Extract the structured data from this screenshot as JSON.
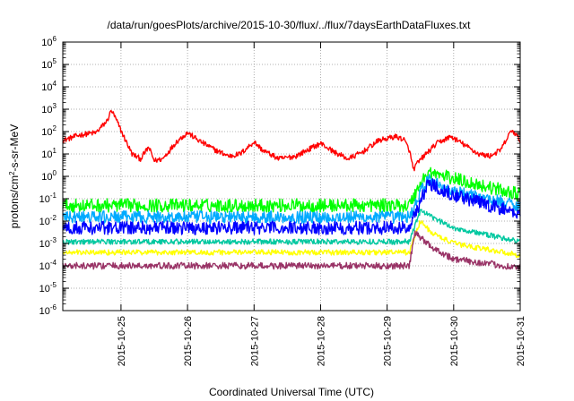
{
  "chart_data": {
    "type": "line",
    "title": "/data/run/goesPlots/archive/2015-10-30/flux/../flux/7daysEarthDataFluxes.txt",
    "xlabel": "Coordinated Universal Time (UTC)",
    "ylabel": {
      "prefix": "protons/cm",
      "sup": "2",
      "suffix": "-s-sr-MeV"
    },
    "yscale": "log",
    "ylim": [
      1e-06,
      1000000.0
    ],
    "xlim": [
      "2015-10-24T03:00",
      "2015-10-31T00:00"
    ],
    "grid": true,
    "legend": "none",
    "y_ticks": [
      {
        "value": 1e-06,
        "base": "10",
        "exp": "-6"
      },
      {
        "value": 1e-05,
        "base": "10",
        "exp": "-5"
      },
      {
        "value": 0.0001,
        "base": "10",
        "exp": "-4"
      },
      {
        "value": 0.001,
        "base": "10",
        "exp": "-3"
      },
      {
        "value": 0.01,
        "base": "10",
        "exp": "-2"
      },
      {
        "value": 0.1,
        "base": "10",
        "exp": "-1"
      },
      {
        "value": 1.0,
        "base": "10",
        "exp": "0"
      },
      {
        "value": 10.0,
        "base": "10",
        "exp": "1"
      },
      {
        "value": 100.0,
        "base": "10",
        "exp": "2"
      },
      {
        "value": 1000.0,
        "base": "10",
        "exp": "3"
      },
      {
        "value": 10000.0,
        "base": "10",
        "exp": "4"
      },
      {
        "value": 100000.0,
        "base": "10",
        "exp": "5"
      },
      {
        "value": 1000000.0,
        "base": "10",
        "exp": "6"
      }
    ],
    "x_ticks": [
      {
        "date": "2015-10-25T00:00",
        "label": "2015-10-25"
      },
      {
        "date": "2015-10-26T00:00",
        "label": "2015-10-26"
      },
      {
        "date": "2015-10-27T00:00",
        "label": "2015-10-27"
      },
      {
        "date": "2015-10-28T00:00",
        "label": "2015-10-28"
      },
      {
        "date": "2015-10-29T00:00",
        "label": "2015-10-29"
      },
      {
        "date": "2015-10-30T00:00",
        "label": "2015-10-30"
      },
      {
        "date": "2015-10-31T00:00",
        "label": "2015-10-31"
      }
    ],
    "series": [
      {
        "color": "#ff0000",
        "noise": 0.12,
        "points": [
          [
            "2015-10-24T03:00",
            40
          ],
          [
            "2015-10-24T09:00",
            70
          ],
          [
            "2015-10-24T15:00",
            90
          ],
          [
            "2015-10-24T19:00",
            300
          ],
          [
            "2015-10-24T20:30",
            900
          ],
          [
            "2015-10-24T22:00",
            400
          ],
          [
            "2015-10-25T01:00",
            60
          ],
          [
            "2015-10-25T04:00",
            10
          ],
          [
            "2015-10-25T07:00",
            6
          ],
          [
            "2015-10-25T10:00",
            20
          ],
          [
            "2015-10-25T12:00",
            5
          ],
          [
            "2015-10-25T15:00",
            6
          ],
          [
            "2015-10-25T20:00",
            35
          ],
          [
            "2015-10-26T00:00",
            90
          ],
          [
            "2015-10-26T04:00",
            40
          ],
          [
            "2015-10-26T10:00",
            15
          ],
          [
            "2015-10-26T15:00",
            8
          ],
          [
            "2015-10-26T19:00",
            10
          ],
          [
            "2015-10-27T00:00",
            35
          ],
          [
            "2015-10-27T03:00",
            15
          ],
          [
            "2015-10-27T09:00",
            6
          ],
          [
            "2015-10-27T15:00",
            8
          ],
          [
            "2015-10-28T00:00",
            30
          ],
          [
            "2015-10-28T05:00",
            12
          ],
          [
            "2015-10-28T10:00",
            6
          ],
          [
            "2015-10-28T15:00",
            12
          ],
          [
            "2015-10-28T21:00",
            40
          ],
          [
            "2015-10-29T03:00",
            60
          ],
          [
            "2015-10-29T06:00",
            45
          ],
          [
            "2015-10-29T08:00",
            15
          ],
          [
            "2015-10-29T09:30",
            2
          ],
          [
            "2015-10-29T11:00",
            4
          ],
          [
            "2015-10-29T14:00",
            10
          ],
          [
            "2015-10-29T18:00",
            30
          ],
          [
            "2015-10-29T23:00",
            60
          ],
          [
            "2015-10-30T04:00",
            25
          ],
          [
            "2015-10-30T09:00",
            10
          ],
          [
            "2015-10-30T13:00",
            8
          ],
          [
            "2015-10-30T17:00",
            15
          ],
          [
            "2015-10-30T21:00",
            120
          ],
          [
            "2015-10-31T00:00",
            40
          ]
        ]
      },
      {
        "color": "#00ff00",
        "noise": 0.3,
        "points": [
          [
            "2015-10-24T03:00",
            0.05
          ],
          [
            "2015-10-29T08:00",
            0.05
          ],
          [
            "2015-10-29T12:00",
            0.5
          ],
          [
            "2015-10-29T15:00",
            1.5
          ],
          [
            "2015-10-30T00:00",
            0.8
          ],
          [
            "2015-10-31T00:00",
            0.15
          ]
        ]
      },
      {
        "color": "#00aaff",
        "noise": 0.28,
        "points": [
          [
            "2015-10-24T03:00",
            0.015
          ],
          [
            "2015-10-29T08:00",
            0.015
          ],
          [
            "2015-10-29T12:00",
            0.2
          ],
          [
            "2015-10-29T15:00",
            0.7
          ],
          [
            "2015-10-30T00:00",
            0.2
          ],
          [
            "2015-10-31T00:00",
            0.05
          ]
        ]
      },
      {
        "color": "#0000ff",
        "noise": 0.3,
        "points": [
          [
            "2015-10-24T03:00",
            0.005
          ],
          [
            "2015-10-29T08:00",
            0.005
          ],
          [
            "2015-10-29T12:00",
            0.08
          ],
          [
            "2015-10-29T15:00",
            0.5
          ],
          [
            "2015-10-30T00:00",
            0.15
          ],
          [
            "2015-10-31T00:00",
            0.02
          ]
        ]
      },
      {
        "color": "#00c8a0",
        "noise": 0.12,
        "points": [
          [
            "2015-10-24T03:00",
            0.0012
          ],
          [
            "2015-10-29T08:00",
            0.0012
          ],
          [
            "2015-10-29T12:00",
            0.03
          ],
          [
            "2015-10-29T16:00",
            0.015
          ],
          [
            "2015-10-30T00:00",
            0.005
          ],
          [
            "2015-10-31T00:00",
            0.0012
          ]
        ]
      },
      {
        "color": "#ffff00",
        "noise": 0.12,
        "points": [
          [
            "2015-10-24T03:00",
            0.0004
          ],
          [
            "2015-10-29T08:00",
            0.0004
          ],
          [
            "2015-10-29T12:00",
            0.01
          ],
          [
            "2015-10-29T16:00",
            0.003
          ],
          [
            "2015-10-30T00:00",
            0.001
          ],
          [
            "2015-10-31T00:00",
            0.0003
          ]
        ]
      },
      {
        "color": "#993366",
        "noise": 0.15,
        "points": [
          [
            "2015-10-24T03:00",
            0.0001
          ],
          [
            "2015-10-29T08:00",
            0.0001
          ],
          [
            "2015-10-29T10:00",
            0.003
          ],
          [
            "2015-10-29T16:00",
            0.0007
          ],
          [
            "2015-10-30T00:00",
            0.0002
          ],
          [
            "2015-10-31T00:00",
            8e-05
          ]
        ]
      }
    ]
  }
}
